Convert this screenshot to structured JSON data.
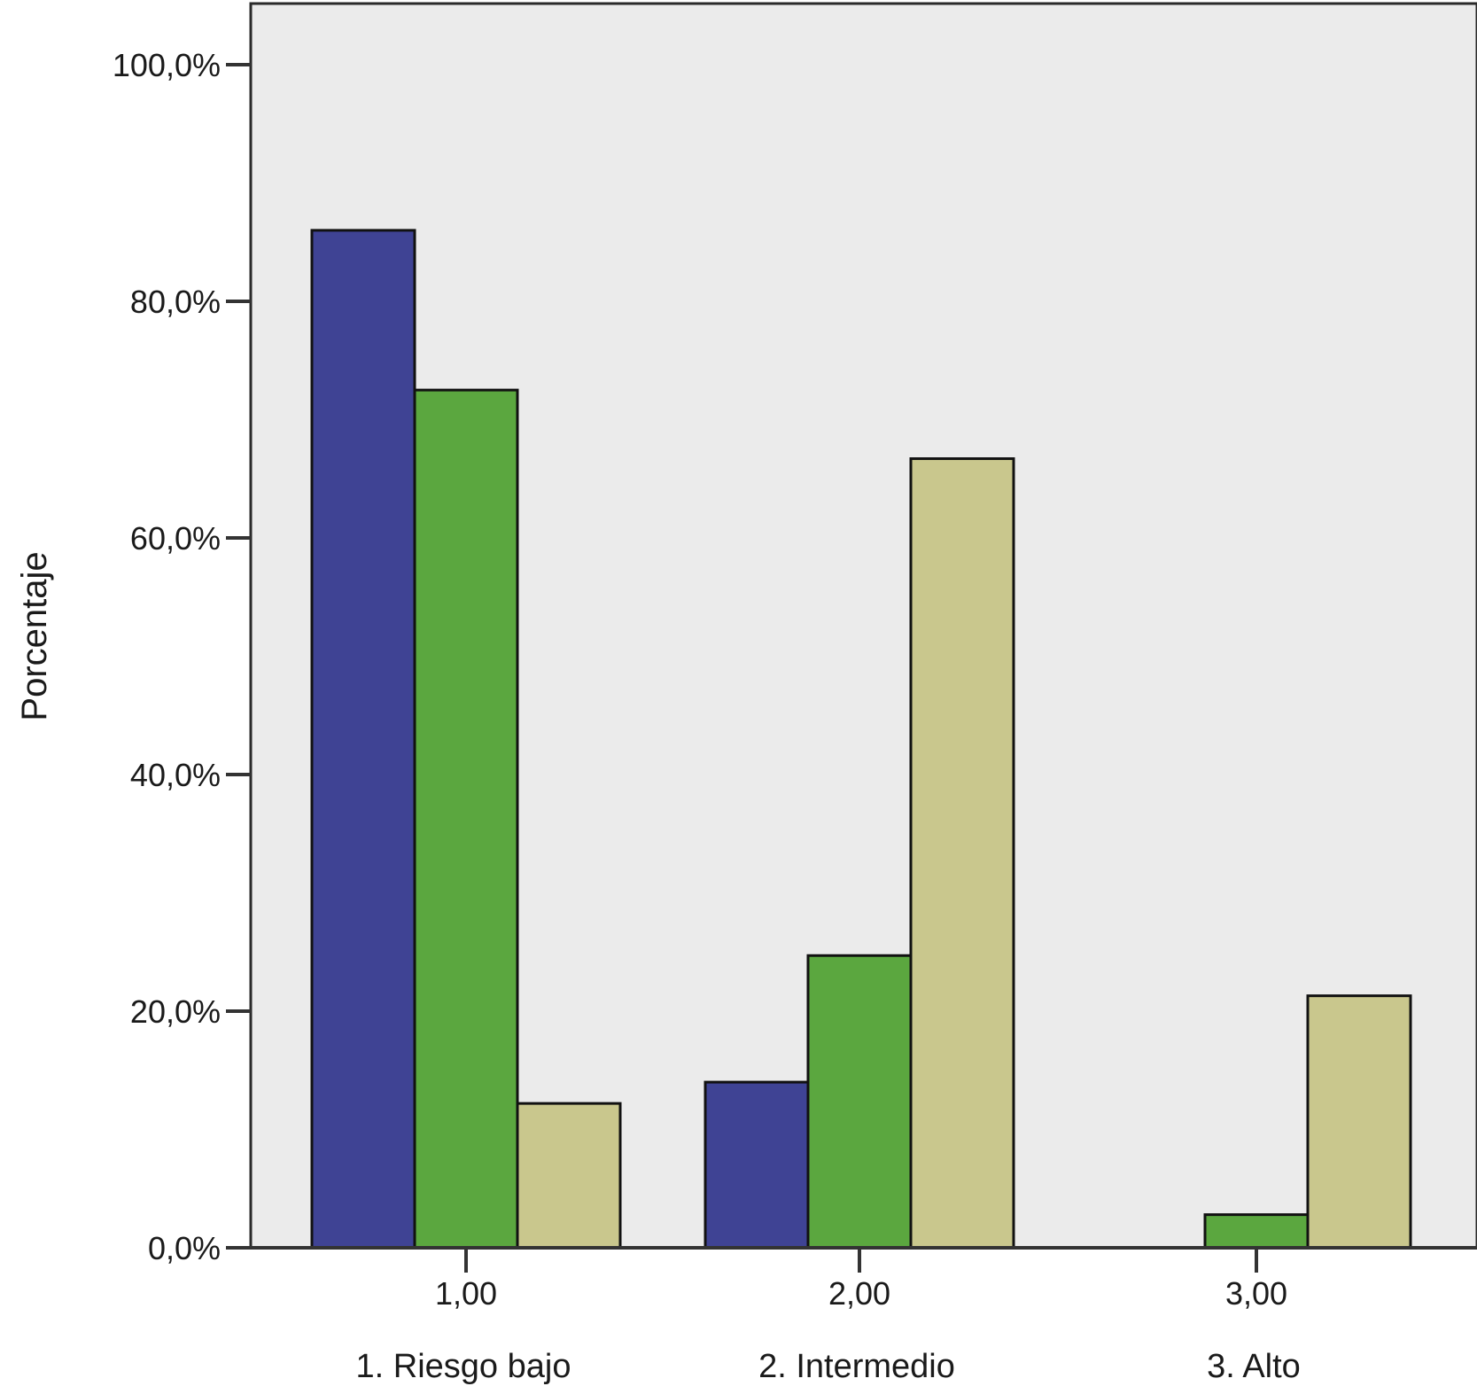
{
  "chart_data": {
    "type": "bar",
    "categories": [
      "1,00",
      "2,00",
      "3,00"
    ],
    "category_descriptions": [
      "1. Riesgo bajo",
      "2. Intermedio",
      "3. Alto"
    ],
    "series": [
      {
        "color": "#3f4394",
        "values": [
          86.0,
          14.0,
          0.0
        ]
      },
      {
        "color": "#5ba73f",
        "values": [
          72.5,
          24.7,
          2.8
        ]
      },
      {
        "color": "#c9c78d",
        "values": [
          12.2,
          66.7,
          21.3
        ]
      }
    ],
    "ylabel": "Porcentaje",
    "xlabel": "",
    "ylim": [
      0,
      100
    ],
    "yticks": [
      0,
      20,
      40,
      60,
      80,
      100
    ],
    "ytick_labels": [
      "0,0%",
      "20,0%",
      "40,0%",
      "60,0%",
      "80,0%",
      "100,0%"
    ],
    "plot_background": "#ebebeb",
    "grid": false,
    "legend": "none"
  }
}
